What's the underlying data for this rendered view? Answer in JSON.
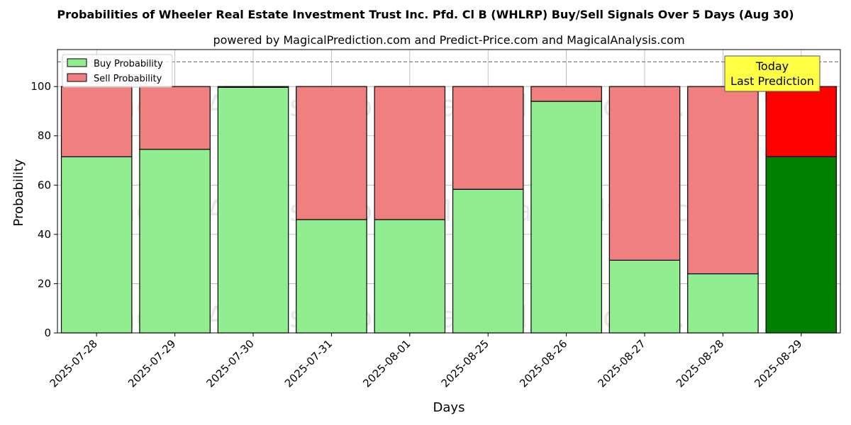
{
  "chart_data": {
    "type": "bar",
    "title": "Probabilities of Wheeler Real Estate Investment Trust Inc. Pfd. Cl B (WHLRP) Buy/Sell Signals Over 5 Days (Aug 30)",
    "subtitle": "powered by MagicalPrediction.com and Predict-Price.com and MagicalAnalysis.com",
    "xlabel": "Days",
    "ylabel": "Probability",
    "ylim": [
      0,
      115
    ],
    "yticks": [
      "0",
      "20",
      "40",
      "60",
      "80",
      "100"
    ],
    "categories": [
      "2025-07-28",
      "2025-07-29",
      "2025-07-30",
      "2025-07-31",
      "2025-08-01",
      "2025-08-25",
      "2025-08-26",
      "2025-08-27",
      "2025-08-28",
      "2025-08-29"
    ],
    "stacked": true,
    "series": [
      {
        "name": "Buy Probability",
        "values": [
          71.5,
          74.5,
          99.7,
          46.0,
          46.0,
          58.3,
          94.0,
          29.5,
          24.0,
          71.5
        ],
        "color": "#90ee90"
      },
      {
        "name": "Sell Probability",
        "values": [
          28.5,
          25.5,
          0.3,
          54.0,
          54.0,
          41.7,
          6.0,
          70.5,
          76.0,
          28.5
        ],
        "color": "#f08080"
      }
    ],
    "highlight": {
      "index": 9,
      "buy_color": "#008000",
      "sell_color": "#ff0000"
    },
    "reference_line": {
      "y": 110,
      "style": "dashed",
      "color": "#808080"
    },
    "annotation": {
      "lines": [
        "Today",
        "Last Prediction"
      ],
      "background": "#ffff44"
    },
    "legend_position": "top-left",
    "grid": true,
    "watermarks": [
      "MagicalAnalysis.com",
      "MagicalPrediction.com"
    ]
  }
}
